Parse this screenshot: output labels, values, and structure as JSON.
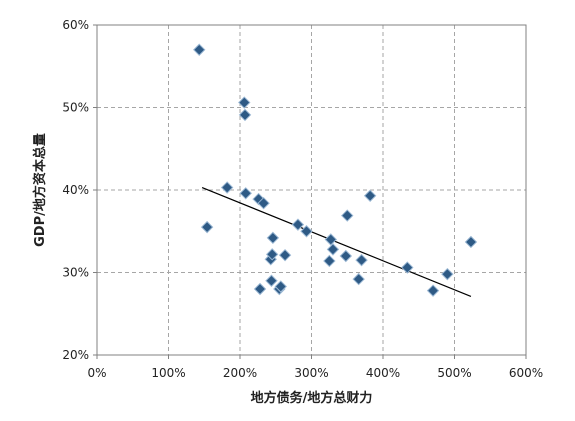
{
  "chart_data": {
    "type": "scatter",
    "xlabel": "地方债务/地方总财力",
    "ylabel": "GDP/地方资本总量",
    "xlim": [
      0,
      600
    ],
    "ylim": [
      20,
      60
    ],
    "x_ticks": [
      0,
      100,
      200,
      300,
      400,
      500,
      600
    ],
    "x_tick_labels": [
      "0%",
      "100%",
      "200%",
      "300%",
      "400%",
      "500%",
      "600%"
    ],
    "y_ticks": [
      20,
      30,
      40,
      50,
      60
    ],
    "y_tick_labels": [
      "20%",
      "30%",
      "40%",
      "50%",
      "60%"
    ],
    "grid": true,
    "legend": "none",
    "marker_color": "#2e5a85",
    "marker_edge_color": "#9ab7d3",
    "trendline_color": "#000000",
    "points": [
      {
        "x": 143,
        "y": 57.0
      },
      {
        "x": 154,
        "y": 35.5
      },
      {
        "x": 182,
        "y": 40.3
      },
      {
        "x": 206,
        "y": 50.6
      },
      {
        "x": 207,
        "y": 49.1
      },
      {
        "x": 208,
        "y": 39.6
      },
      {
        "x": 226,
        "y": 38.9
      },
      {
        "x": 228,
        "y": 28.0
      },
      {
        "x": 233,
        "y": 38.4
      },
      {
        "x": 243,
        "y": 31.6
      },
      {
        "x": 244,
        "y": 29.0
      },
      {
        "x": 245,
        "y": 32.2
      },
      {
        "x": 246,
        "y": 34.2
      },
      {
        "x": 255,
        "y": 28.0
      },
      {
        "x": 257,
        "y": 28.3
      },
      {
        "x": 263,
        "y": 32.1
      },
      {
        "x": 281,
        "y": 35.8
      },
      {
        "x": 293,
        "y": 35.0
      },
      {
        "x": 325,
        "y": 31.4
      },
      {
        "x": 327,
        "y": 34.0
      },
      {
        "x": 330,
        "y": 32.8
      },
      {
        "x": 348,
        "y": 32.0
      },
      {
        "x": 350,
        "y": 36.9
      },
      {
        "x": 366,
        "y": 29.2
      },
      {
        "x": 370,
        "y": 31.5
      },
      {
        "x": 382,
        "y": 39.3
      },
      {
        "x": 434,
        "y": 30.6
      },
      {
        "x": 470,
        "y": 27.8
      },
      {
        "x": 490,
        "y": 29.8
      },
      {
        "x": 523,
        "y": 33.7
      }
    ],
    "trendline": {
      "x": [
        147,
        523
      ],
      "y": [
        40.3,
        27.1
      ]
    }
  }
}
